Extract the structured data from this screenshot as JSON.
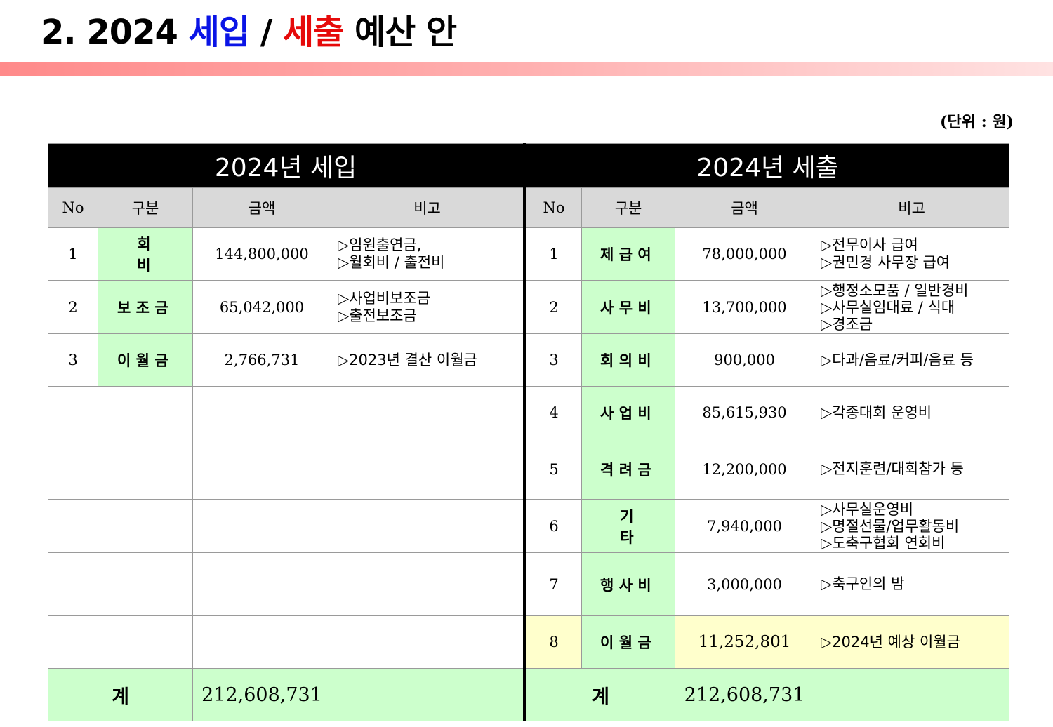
{
  "title": {
    "prefix": "2. 2024 ",
    "income_word": "세입",
    "slash": " / ",
    "expense_word": "세출",
    "suffix": " 예산 안"
  },
  "unit": "(단위 : 원)",
  "income": {
    "header": "2024년 세입",
    "columns": [
      "No",
      "구분",
      "금액",
      "비고"
    ],
    "rows": [
      {
        "no": "1",
        "category": "회 비",
        "amount": "144,800,000",
        "notes": [
          "▷임원출연금,",
          "▷월회비 / 출전비"
        ]
      },
      {
        "no": "2",
        "category": "보조금",
        "amount": "65,042,000",
        "notes": [
          "▷사업비보조금",
          "▷출전보조금"
        ]
      },
      {
        "no": "3",
        "category": "이월금",
        "amount": "2,766,731",
        "notes": [
          "▷2023년 결산 이월금"
        ]
      }
    ],
    "total_label": "계",
    "total": "212,608,731"
  },
  "expense": {
    "header": "2024년 세출",
    "columns": [
      "No",
      "구분",
      "금액",
      "비고"
    ],
    "rows": [
      {
        "no": "1",
        "category": "제급여",
        "amount": "78,000,000",
        "notes": [
          "▷전무이사 급여",
          "▷권민경 사무장 급여"
        ]
      },
      {
        "no": "2",
        "category": "사무비",
        "amount": "13,700,000",
        "notes": [
          "▷행정소모품 / 일반경비",
          "▷사무실임대료 / 식대",
          "▷경조금"
        ]
      },
      {
        "no": "3",
        "category": "회의비",
        "amount": "900,000",
        "notes": [
          "▷다과/음료/커피/음료 등"
        ]
      },
      {
        "no": "4",
        "category": "사업비",
        "amount": "85,615,930",
        "notes": [
          "▷각종대회 운영비"
        ]
      },
      {
        "no": "5",
        "category": "격려금",
        "amount": "12,200,000",
        "notes": [
          "▷전지훈련/대회참가 등"
        ]
      },
      {
        "no": "6",
        "category": "기 타",
        "amount": "7,940,000",
        "notes": [
          "▷사무실운영비",
          "▷명절선물/업무활동비",
          "▷도축구협회 연회비"
        ]
      },
      {
        "no": "7",
        "category": "행사비",
        "amount": "3,000,000",
        "notes": [
          "▷축구인의 밤"
        ]
      },
      {
        "no": "8",
        "category": "이월금",
        "amount": "11,252,801",
        "notes": [
          "▷2024년 예상 이월금"
        ]
      }
    ],
    "total_label": "계",
    "total": "212,608,731"
  },
  "colors": {
    "title_income": "#0a14e6",
    "title_expense": "#e60a0a",
    "header_bg": "#000000",
    "column_header_bg": "#d9d9d9",
    "category_bg": "#ccffcc",
    "total_bg": "#ccffcc",
    "carryover_row_bg": "#ffffcc"
  }
}
